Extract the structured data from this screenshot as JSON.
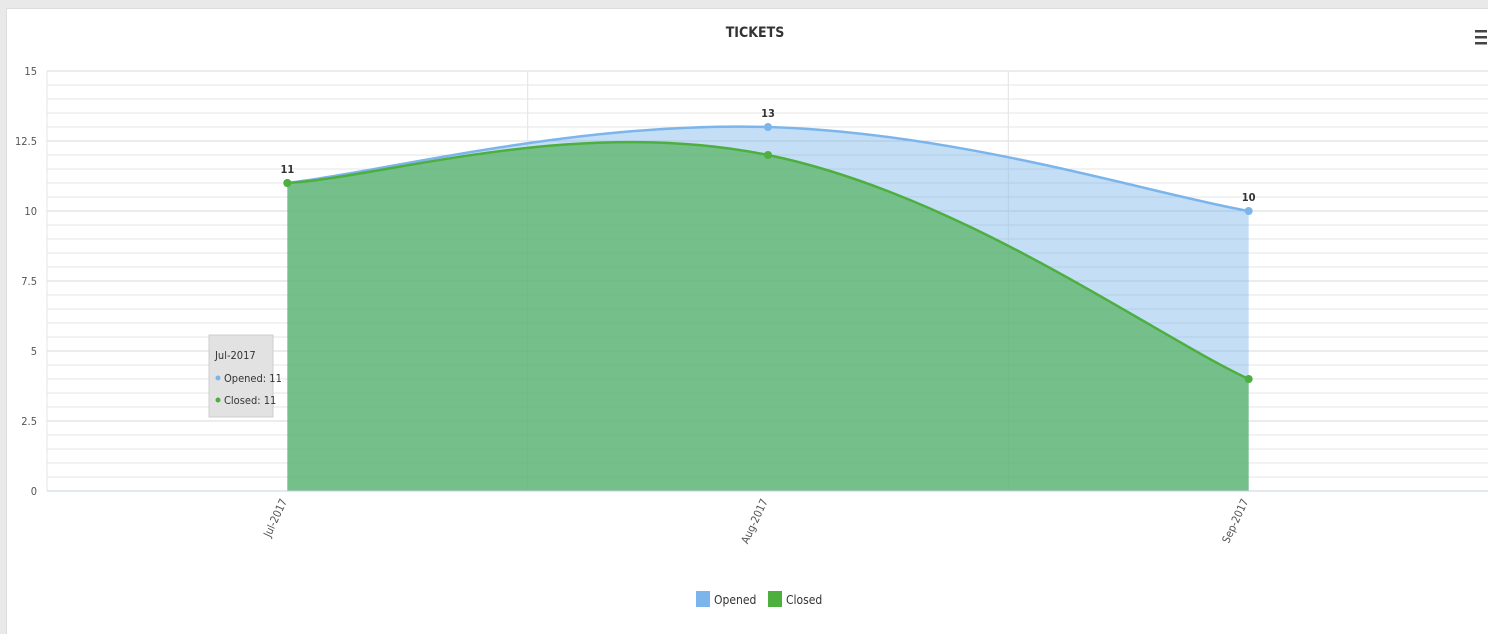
{
  "colors": {
    "opened": "#7cb5ec",
    "closed": "#4caf3e",
    "opened_fill": "rgba(124,181,236,0.45)",
    "closed_fill": "rgba(76,175,80,0.65)",
    "grid": "#e4e4e4"
  },
  "menu_icon": "hamburger-icon",
  "chart_data": {
    "type": "area",
    "title": "TICKETS",
    "categories": [
      "Jul-2017",
      "Aug-2017",
      "Sep-2017"
    ],
    "y_tick_labels": [
      "0",
      "2.5",
      "5",
      "7.5",
      "10",
      "12.5",
      "15"
    ],
    "ylim": [
      0,
      15
    ],
    "grid": true,
    "legend": "bottom-center",
    "series": [
      {
        "name": "Opened",
        "values": [
          11,
          13,
          10
        ],
        "data_labels": [
          "11",
          "13",
          "10"
        ]
      },
      {
        "name": "Closed",
        "values": [
          11,
          12,
          4
        ]
      }
    ],
    "tooltip": {
      "header": "Jul-2017",
      "rows": [
        "Opened: 11",
        "Closed: 11"
      ]
    }
  }
}
